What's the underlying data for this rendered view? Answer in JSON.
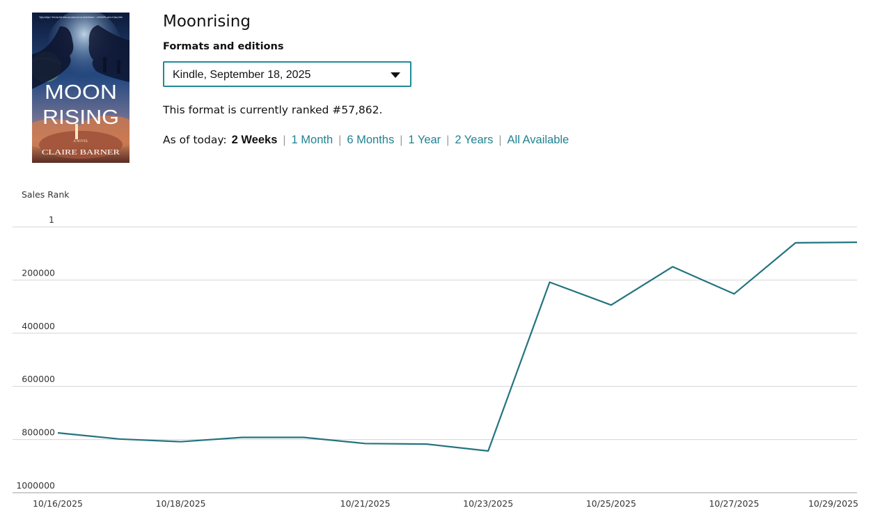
{
  "product": {
    "title": "Moonrising",
    "cover": {
      "blurb": "\"Highly intelligent. Think Andy Weir meets cozy romance and eco-minded literature.\" —CASSANDRA, author of Galaxy Grifter",
      "title_line1": "MOON",
      "title_line2": "RISING",
      "subtitle": "A NOVEL",
      "author": "CLAIRE BARNER"
    }
  },
  "formats": {
    "label": "Formats and editions",
    "selected": "Kindle, September 18, 2025"
  },
  "rank_text": "This format is currently ranked #57,862.",
  "range": {
    "lead": "As of today:",
    "options": [
      "2 Weeks",
      "1 Month",
      "6 Months",
      "1 Year",
      "2 Years",
      "All Available"
    ],
    "active": "2 Weeks"
  },
  "colors": {
    "accent": "#1e8a95",
    "line": "#23737f",
    "link": "#1f8391",
    "grid": "#d4d4d4"
  },
  "chart_data": {
    "type": "line",
    "ylabel": "Sales Rank",
    "y_inverted": true,
    "ylim": [
      1,
      1000000
    ],
    "y_ticks": [
      1,
      200000,
      400000,
      600000,
      800000,
      1000000
    ],
    "y_tick_labels": [
      "1",
      "200000",
      "400000",
      "600000",
      "800000",
      "1000000"
    ],
    "x_tick_labels": [
      "10/16/2025",
      "10/18/2025",
      "10/21/2025",
      "10/23/2025",
      "10/25/2025",
      "10/27/2025",
      "10/29/2025"
    ],
    "grid": true,
    "series": [
      {
        "x": [
          "10/16/2025",
          "10/17/2025",
          "10/18/2025",
          "10/19/2025",
          "10/20/2025",
          "10/21/2025",
          "10/22/2025",
          "10/23/2025",
          "10/24/2025",
          "10/25/2025",
          "10/26/2025",
          "10/27/2025",
          "10/28/2025",
          "10/29/2025"
        ],
        "values": [
          775000,
          798000,
          808000,
          792000,
          792000,
          815000,
          817000,
          843000,
          208000,
          294000,
          150000,
          252000,
          60000,
          57862
        ]
      }
    ]
  }
}
